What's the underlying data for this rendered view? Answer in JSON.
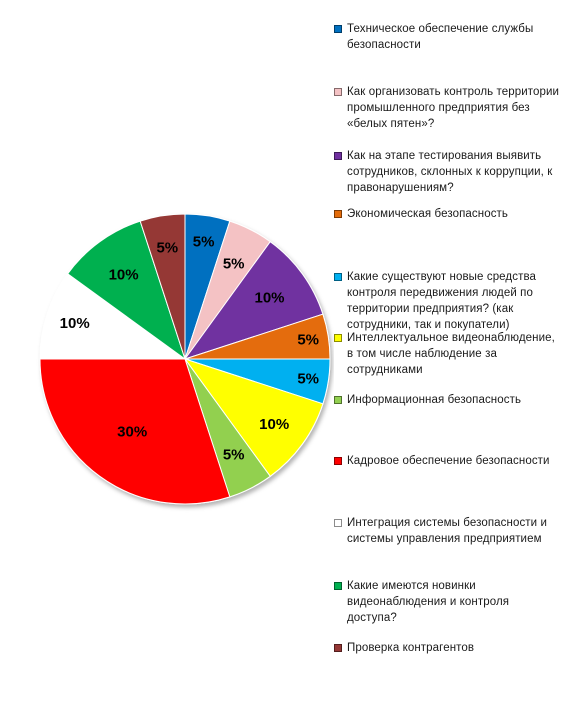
{
  "chart_data": {
    "type": "pie",
    "title": "",
    "legend_position": "right",
    "slices": [
      {
        "label": "Техническое обеспечение службы безопасности",
        "value": 5,
        "display": "5%",
        "color": "#0070c0"
      },
      {
        "label": "Как организовать контроль территории промышленного предприятия без «белых пятен»?",
        "value": 5,
        "display": "5%",
        "color": "#f4c2c4"
      },
      {
        "label": "Как на этапе тестирования выявить сотрудников, склонных к коррупции, к правонарушениям?",
        "value": 10,
        "display": "10%",
        "color": "#7030a0"
      },
      {
        "label": "Экономическая безопасность",
        "value": 5,
        "display": "5%",
        "color": "#e46c0a"
      },
      {
        "label": "Какие существуют новые средства контроля передвижения людей по территории предприятия? (как сотрудники, так и покупатели)",
        "value": 5,
        "display": "5%",
        "color": "#00b0f0"
      },
      {
        "label": "Интеллектуальное видеонаблюдение, в том числе наблюдение за сотрудниками",
        "value": 10,
        "display": "10%",
        "color": "#ffff00"
      },
      {
        "label": "Информационная безопасность",
        "value": 5,
        "display": "5%",
        "color": "#92d050"
      },
      {
        "label": "Кадровое обеспечение безопасности",
        "value": 30,
        "display": "30%",
        "color": "#ff0000"
      },
      {
        "label": "Интеграция системы безопасности и системы управления предприятием",
        "value": 10,
        "display": "10%",
        "color": "#ffffff"
      },
      {
        "label": "Какие имеются новинки видеонаблюдения и контроля доступа?",
        "value": 10,
        "display": "10%",
        "color": "#00b050"
      },
      {
        "label": "Проверка контрагентов",
        "value": 5,
        "display": "5%",
        "color": "#953735"
      }
    ]
  }
}
